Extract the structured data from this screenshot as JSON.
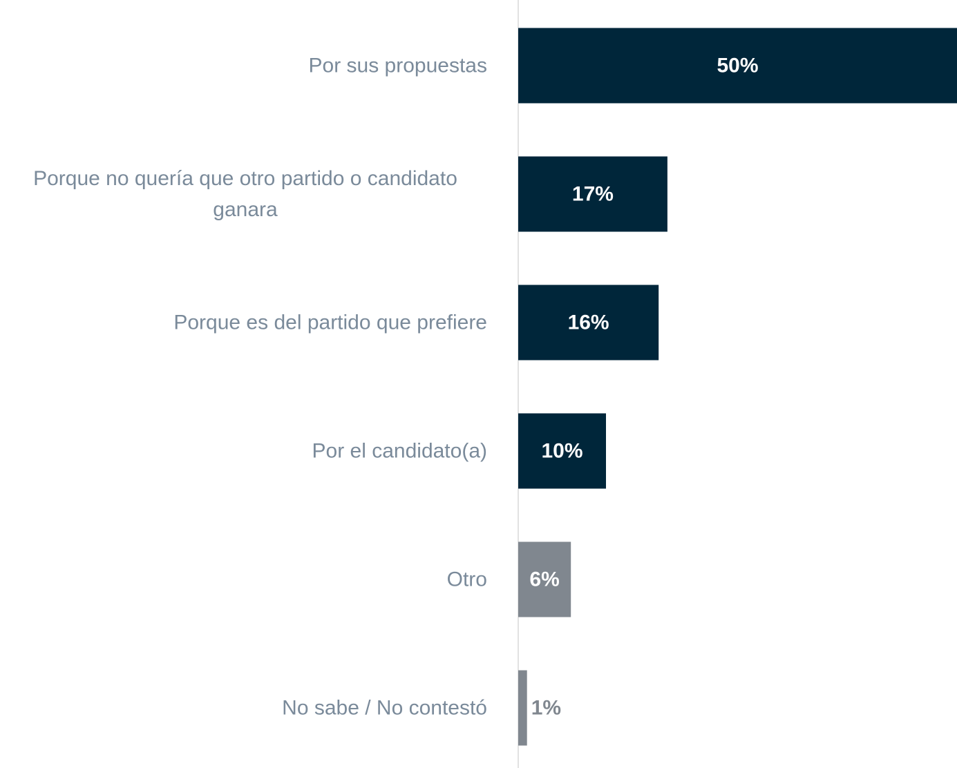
{
  "chart_data": {
    "type": "bar",
    "orientation": "horizontal",
    "categories": [
      "Por sus propuestas",
      "Porque no quería que otro partido o candidato ganara",
      "Porque es del partido que prefiere",
      "Por el candidato(a)",
      "Otro",
      "No sabe / No contestó"
    ],
    "values": [
      50,
      17,
      16,
      10,
      6,
      1
    ],
    "value_labels": [
      "50%",
      "17%",
      "16%",
      "10%",
      "6%",
      "1%"
    ],
    "colors": [
      "#00263a",
      "#00263a",
      "#00263a",
      "#00263a",
      "#80878f",
      "#80878f"
    ],
    "xlim": [
      0,
      50
    ]
  }
}
